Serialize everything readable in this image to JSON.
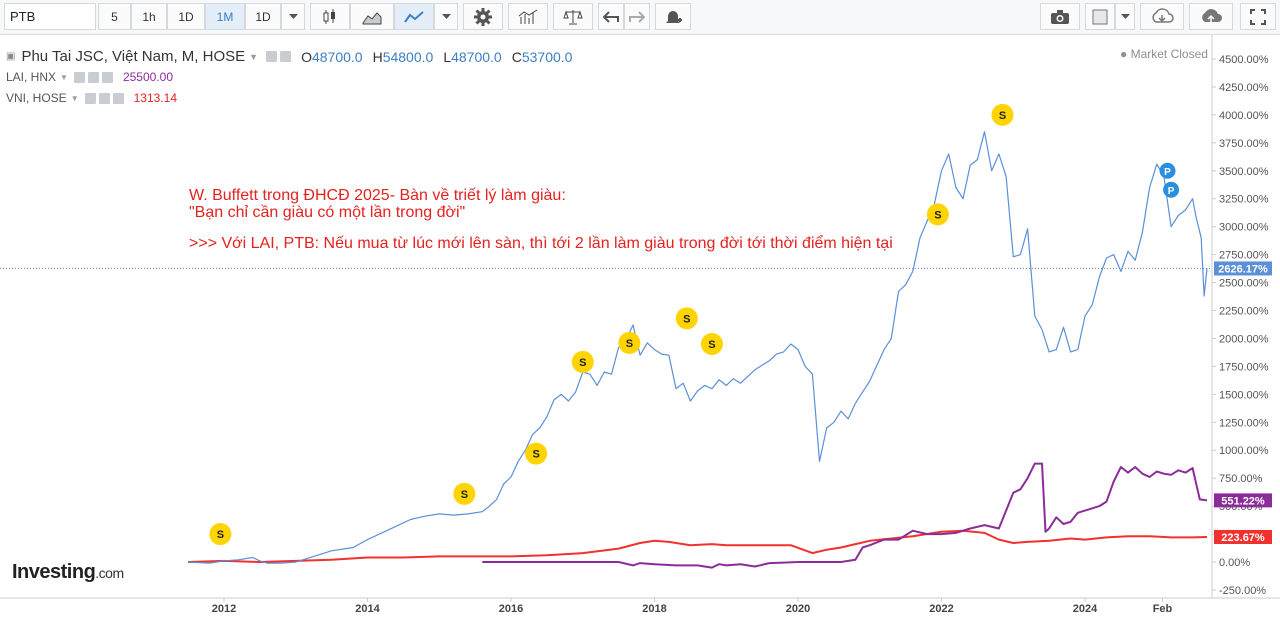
{
  "toolbar": {
    "symbol": "PTB",
    "intervals": [
      "5",
      "1h",
      "1D",
      "1M",
      "1D"
    ],
    "active_interval": "1M"
  },
  "legend": {
    "main": {
      "name": "Phu Tai JSC, Việt Nam, M, HOSE",
      "o_label": "O",
      "o_value": "48700.0",
      "h_label": "H",
      "h_value": "54800.0",
      "l_label": "L",
      "l_value": "48700.0",
      "c_label": "C",
      "c_value": "53700.0"
    },
    "lai": {
      "name": "LAI, HNX",
      "value": "25500.00"
    },
    "vni": {
      "name": "VNI, HOSE",
      "value": "1313.14"
    },
    "market_status": "Market Closed"
  },
  "annotation": {
    "line1": "W. Buffett trong ĐHCĐ 2025- Bàn về triết lý làm giàu:",
    "line2": "\"Bạn chỉ cần giàu có một lần trong đời\"",
    "line3": ">>> Với LAI, PTB: Nếu mua từ lúc mới lên sàn, thì tới 2 lần làm giàu trong đời tới thời điểm hiện tại"
  },
  "logo": {
    "brand": "Investing",
    "suffix": ".com"
  },
  "colors": {
    "ptb": "#5b8fd6",
    "lai": "#8a2d99",
    "vni": "#f0312e",
    "event": "#ffd400"
  },
  "chart_data": {
    "type": "line",
    "y_unit": "%",
    "ylim": [
      -250,
      4600
    ],
    "yticks": [
      "4500.00%",
      "4250.00%",
      "4000.00%",
      "3750.00%",
      "3500.00%",
      "3250.00%",
      "3000.00%",
      "2750.00%",
      "2500.00%",
      "2250.00%",
      "2000.00%",
      "1750.00%",
      "1500.00%",
      "1250.00%",
      "1000.00%",
      "750.00%",
      "500.00%",
      "250.00%",
      "0.00%",
      "-250.00%"
    ],
    "xticks": [
      {
        "label": "2012",
        "x": 2012.0
      },
      {
        "label": "2014",
        "x": 2014.0
      },
      {
        "label": "2016",
        "x": 2016.0
      },
      {
        "label": "2018",
        "x": 2018.0
      },
      {
        "label": "2020",
        "x": 2020.0
      },
      {
        "label": "2022",
        "x": 2022.0
      },
      {
        "label": "2024",
        "x": 2024.0
      },
      {
        "label": "Feb",
        "x": 2025.08
      }
    ],
    "xlim": [
      2010.6,
      2025.7
    ],
    "last_labels": [
      {
        "series": "PTB",
        "text": "2626.17%",
        "value": 2626.17
      },
      {
        "series": "LAI",
        "text": "551.22%",
        "value": 551.22
      },
      {
        "series": "VNI",
        "text": "223.67%",
        "value": 223.67
      }
    ],
    "series": [
      {
        "name": "PTB",
        "color": "#5b8fd6",
        "points": [
          [
            2011.5,
            0
          ],
          [
            2011.8,
            -10
          ],
          [
            2012.0,
            10
          ],
          [
            2012.2,
            20
          ],
          [
            2012.4,
            40
          ],
          [
            2012.5,
            10
          ],
          [
            2012.6,
            -10
          ],
          [
            2012.8,
            -10
          ],
          [
            2013.0,
            0
          ],
          [
            2013.1,
            20
          ],
          [
            2013.3,
            60
          ],
          [
            2013.5,
            100
          ],
          [
            2013.8,
            130
          ],
          [
            2014.0,
            200
          ],
          [
            2014.2,
            260
          ],
          [
            2014.4,
            320
          ],
          [
            2014.6,
            380
          ],
          [
            2014.8,
            410
          ],
          [
            2015.0,
            430
          ],
          [
            2015.2,
            420
          ],
          [
            2015.4,
            430
          ],
          [
            2015.6,
            450
          ],
          [
            2015.7,
            500
          ],
          [
            2015.8,
            560
          ],
          [
            2015.9,
            700
          ],
          [
            2016.0,
            760
          ],
          [
            2016.1,
            900
          ],
          [
            2016.2,
            1000
          ],
          [
            2016.3,
            1140
          ],
          [
            2016.4,
            1200
          ],
          [
            2016.5,
            1300
          ],
          [
            2016.6,
            1450
          ],
          [
            2016.7,
            1500
          ],
          [
            2016.8,
            1440
          ],
          [
            2016.9,
            1520
          ],
          [
            2017.0,
            1700
          ],
          [
            2017.1,
            1680
          ],
          [
            2017.2,
            1580
          ],
          [
            2017.3,
            1700
          ],
          [
            2017.4,
            1680
          ],
          [
            2017.5,
            1920
          ],
          [
            2017.6,
            1980
          ],
          [
            2017.7,
            2120
          ],
          [
            2017.8,
            1850
          ],
          [
            2017.9,
            1960
          ],
          [
            2018.0,
            1900
          ],
          [
            2018.1,
            1860
          ],
          [
            2018.2,
            1850
          ],
          [
            2018.3,
            1550
          ],
          [
            2018.4,
            1600
          ],
          [
            2018.5,
            1440
          ],
          [
            2018.6,
            1530
          ],
          [
            2018.7,
            1580
          ],
          [
            2018.8,
            1550
          ],
          [
            2018.9,
            1630
          ],
          [
            2019.0,
            1580
          ],
          [
            2019.1,
            1640
          ],
          [
            2019.2,
            1600
          ],
          [
            2019.3,
            1660
          ],
          [
            2019.4,
            1720
          ],
          [
            2019.5,
            1760
          ],
          [
            2019.6,
            1800
          ],
          [
            2019.7,
            1860
          ],
          [
            2019.8,
            1880
          ],
          [
            2019.9,
            1950
          ],
          [
            2020.0,
            1900
          ],
          [
            2020.1,
            1750
          ],
          [
            2020.2,
            1680
          ],
          [
            2020.3,
            900
          ],
          [
            2020.4,
            1200
          ],
          [
            2020.5,
            1250
          ],
          [
            2020.6,
            1350
          ],
          [
            2020.7,
            1280
          ],
          [
            2020.8,
            1420
          ],
          [
            2020.9,
            1520
          ],
          [
            2021.0,
            1620
          ],
          [
            2021.1,
            1760
          ],
          [
            2021.2,
            1900
          ],
          [
            2021.3,
            2000
          ],
          [
            2021.4,
            2420
          ],
          [
            2021.5,
            2480
          ],
          [
            2021.6,
            2600
          ],
          [
            2021.7,
            2900
          ],
          [
            2021.8,
            3050
          ],
          [
            2021.9,
            3200
          ],
          [
            2022.0,
            3500
          ],
          [
            2022.1,
            3650
          ],
          [
            2022.2,
            3350
          ],
          [
            2022.3,
            3250
          ],
          [
            2022.4,
            3550
          ],
          [
            2022.5,
            3600
          ],
          [
            2022.6,
            3850
          ],
          [
            2022.7,
            3500
          ],
          [
            2022.8,
            3650
          ],
          [
            2022.9,
            3450
          ],
          [
            2023.0,
            2730
          ],
          [
            2023.1,
            2750
          ],
          [
            2023.2,
            2980
          ],
          [
            2023.3,
            2200
          ],
          [
            2023.4,
            2080
          ],
          [
            2023.5,
            1880
          ],
          [
            2023.6,
            1900
          ],
          [
            2023.7,
            2100
          ],
          [
            2023.8,
            1880
          ],
          [
            2023.9,
            1900
          ],
          [
            2024.0,
            2200
          ],
          [
            2024.1,
            2300
          ],
          [
            2024.2,
            2550
          ],
          [
            2024.3,
            2720
          ],
          [
            2024.4,
            2750
          ],
          [
            2024.5,
            2600
          ],
          [
            2024.6,
            2780
          ],
          [
            2024.7,
            2700
          ],
          [
            2024.8,
            2950
          ],
          [
            2024.9,
            3350
          ],
          [
            2025.0,
            3560
          ],
          [
            2025.1,
            3450
          ],
          [
            2025.2,
            3000
          ],
          [
            2025.3,
            3100
          ],
          [
            2025.4,
            3150
          ],
          [
            2025.5,
            3250
          ],
          [
            2025.55,
            3080
          ],
          [
            2025.62,
            2900
          ],
          [
            2025.66,
            2380
          ],
          [
            2025.7,
            2626
          ]
        ]
      },
      {
        "name": "LAI",
        "color": "#8a2d99",
        "points": [
          [
            2015.6,
            0
          ],
          [
            2016.0,
            0
          ],
          [
            2016.5,
            0
          ],
          [
            2017.0,
            0
          ],
          [
            2017.5,
            0
          ],
          [
            2017.7,
            -30
          ],
          [
            2017.8,
            -10
          ],
          [
            2018.0,
            -20
          ],
          [
            2018.3,
            -30
          ],
          [
            2018.6,
            -30
          ],
          [
            2018.8,
            -50
          ],
          [
            2018.9,
            -20
          ],
          [
            2019.0,
            -30
          ],
          [
            2019.2,
            -20
          ],
          [
            2019.4,
            -40
          ],
          [
            2019.6,
            -10
          ],
          [
            2019.8,
            -5
          ],
          [
            2020.0,
            0
          ],
          [
            2020.3,
            0
          ],
          [
            2020.6,
            0
          ],
          [
            2020.8,
            20
          ],
          [
            2020.9,
            130
          ],
          [
            2021.0,
            150
          ],
          [
            2021.2,
            200
          ],
          [
            2021.4,
            200
          ],
          [
            2021.6,
            280
          ],
          [
            2021.8,
            250
          ],
          [
            2022.0,
            250
          ],
          [
            2022.2,
            260
          ],
          [
            2022.4,
            300
          ],
          [
            2022.6,
            330
          ],
          [
            2022.8,
            300
          ],
          [
            2023.0,
            620
          ],
          [
            2023.1,
            650
          ],
          [
            2023.2,
            750
          ],
          [
            2023.3,
            880
          ],
          [
            2023.4,
            880
          ],
          [
            2023.45,
            270
          ],
          [
            2023.5,
            300
          ],
          [
            2023.6,
            400
          ],
          [
            2023.7,
            340
          ],
          [
            2023.8,
            360
          ],
          [
            2023.9,
            440
          ],
          [
            2024.0,
            460
          ],
          [
            2024.1,
            480
          ],
          [
            2024.2,
            500
          ],
          [
            2024.3,
            540
          ],
          [
            2024.4,
            720
          ],
          [
            2024.5,
            850
          ],
          [
            2024.6,
            800
          ],
          [
            2024.7,
            850
          ],
          [
            2024.8,
            790
          ],
          [
            2024.9,
            760
          ],
          [
            2025.0,
            810
          ],
          [
            2025.1,
            790
          ],
          [
            2025.2,
            780
          ],
          [
            2025.3,
            820
          ],
          [
            2025.4,
            800
          ],
          [
            2025.5,
            840
          ],
          [
            2025.55,
            700
          ],
          [
            2025.6,
            560
          ],
          [
            2025.7,
            551
          ]
        ]
      },
      {
        "name": "VNI",
        "color": "#f0312e",
        "points": [
          [
            2011.5,
            0
          ],
          [
            2012.0,
            10
          ],
          [
            2012.5,
            0
          ],
          [
            2013.0,
            10
          ],
          [
            2013.5,
            20
          ],
          [
            2014.0,
            40
          ],
          [
            2014.5,
            40
          ],
          [
            2015.0,
            50
          ],
          [
            2015.5,
            50
          ],
          [
            2016.0,
            50
          ],
          [
            2016.5,
            60
          ],
          [
            2017.0,
            80
          ],
          [
            2017.5,
            120
          ],
          [
            2017.8,
            170
          ],
          [
            2018.0,
            190
          ],
          [
            2018.2,
            180
          ],
          [
            2018.5,
            150
          ],
          [
            2018.8,
            160
          ],
          [
            2019.0,
            150
          ],
          [
            2019.5,
            150
          ],
          [
            2019.9,
            150
          ],
          [
            2020.2,
            80
          ],
          [
            2020.4,
            110
          ],
          [
            2020.6,
            130
          ],
          [
            2020.8,
            160
          ],
          [
            2021.0,
            190
          ],
          [
            2021.3,
            210
          ],
          [
            2021.6,
            230
          ],
          [
            2022.0,
            270
          ],
          [
            2022.3,
            280
          ],
          [
            2022.6,
            260
          ],
          [
            2022.8,
            200
          ],
          [
            2023.0,
            170
          ],
          [
            2023.2,
            180
          ],
          [
            2023.5,
            190
          ],
          [
            2023.8,
            210
          ],
          [
            2024.0,
            200
          ],
          [
            2024.3,
            220
          ],
          [
            2024.6,
            230
          ],
          [
            2024.9,
            230
          ],
          [
            2025.2,
            220
          ],
          [
            2025.5,
            220
          ],
          [
            2025.7,
            224
          ]
        ]
      }
    ],
    "events": [
      {
        "type": "S",
        "x": 2011.95,
        "y": 250
      },
      {
        "type": "S",
        "x": 2015.35,
        "y": 610
      },
      {
        "type": "S",
        "x": 2016.35,
        "y": 970
      },
      {
        "type": "S",
        "x": 2017.0,
        "y": 1790
      },
      {
        "type": "S",
        "x": 2017.65,
        "y": 1960
      },
      {
        "type": "S",
        "x": 2018.45,
        "y": 2180
      },
      {
        "type": "S",
        "x": 2018.8,
        "y": 1950
      },
      {
        "type": "S",
        "x": 2021.95,
        "y": 3110
      },
      {
        "type": "S",
        "x": 2022.85,
        "y": 4000
      },
      {
        "type": "P",
        "x": 2025.15,
        "y": 3500
      },
      {
        "type": "P",
        "x": 2025.2,
        "y": 3330
      }
    ]
  }
}
